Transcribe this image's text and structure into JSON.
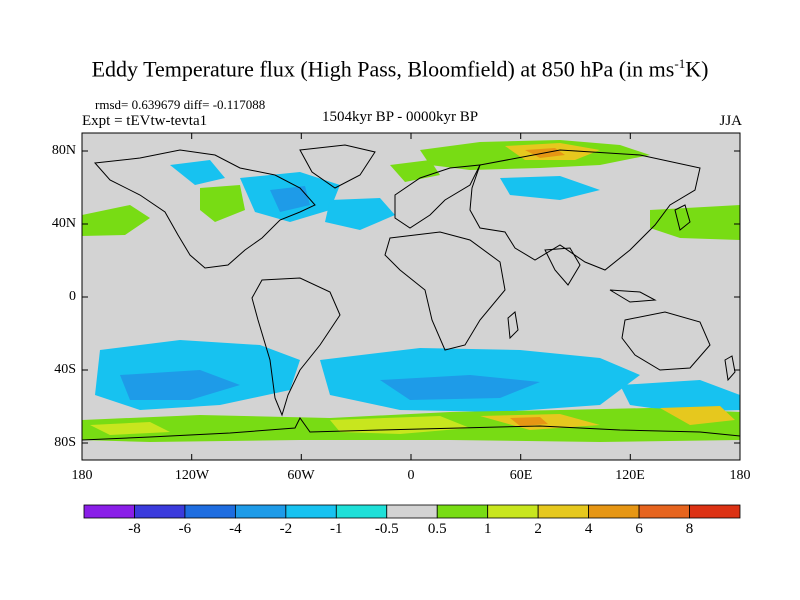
{
  "title": {
    "main": "Eddy Temperature flux (High Pass, Bloomfield) at 850 hPa (in ms",
    "sup": "-1",
    "tail": "K)"
  },
  "stats": "rmsd= 0.639679 diff= -0.117088",
  "expt": "Expt = tEVtw-tevta1",
  "period": "1504kyr BP - 0000kyr BP",
  "season": "JJA",
  "lat_labels": [
    "80N",
    "40N",
    "0",
    "40S",
    "80S"
  ],
  "lon_labels": [
    "180",
    "120W",
    "60W",
    "0",
    "60E",
    "120E",
    "180"
  ],
  "colorbar": {
    "levels": [
      "-8",
      "-6",
      "-4",
      "-2",
      "-1",
      "-0.5",
      "0.5",
      "1",
      "2",
      "4",
      "6",
      "8"
    ],
    "colors": [
      "#8a1ee8",
      "#3b3bdc",
      "#1e6de0",
      "#1e9be8",
      "#17c2f0",
      "#1ee0d8",
      "#d3d3d3",
      "#78dc14",
      "#c8e61e",
      "#e6c81e",
      "#e69614",
      "#e6641e",
      "#dc3214"
    ]
  },
  "colors": {
    "land_background": "#d3d3d3",
    "coastline": "#000000"
  }
}
